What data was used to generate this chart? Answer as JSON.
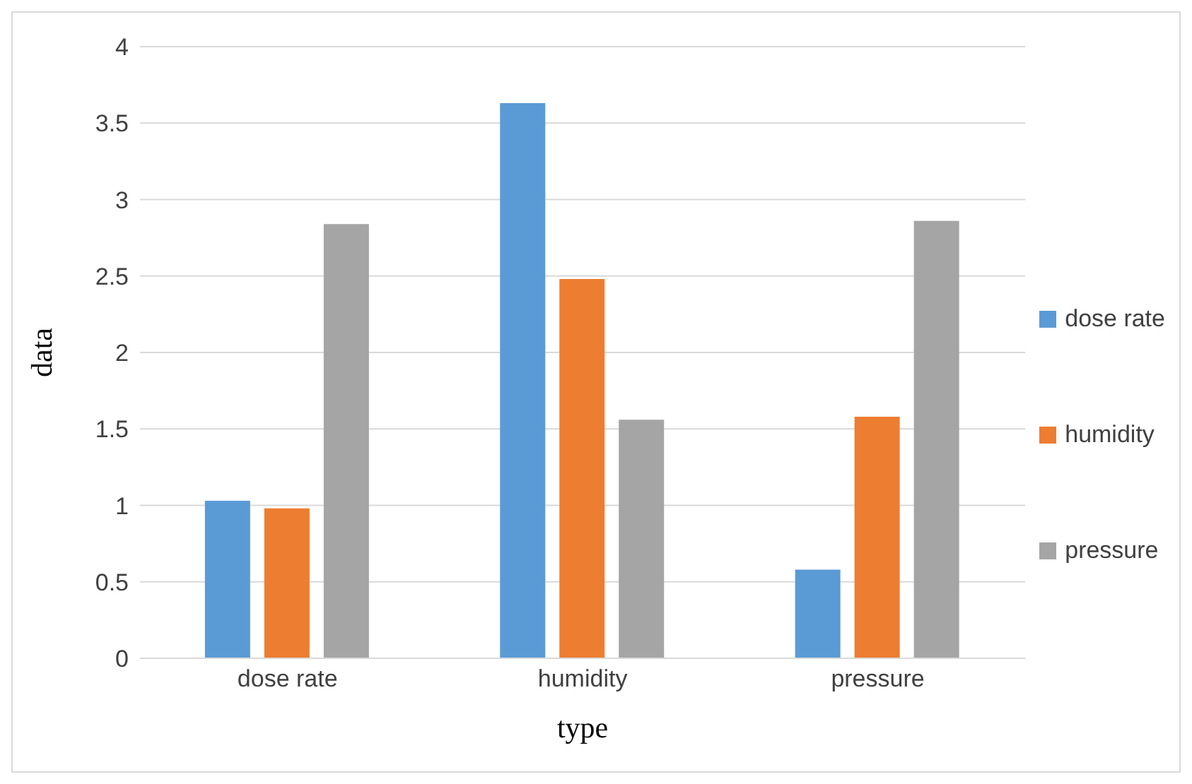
{
  "chart_data": {
    "type": "bar",
    "xlabel": "type",
    "ylabel": "data",
    "categories": [
      "dose rate",
      "humidity",
      "pressure"
    ],
    "series": [
      {
        "name": "dose rate",
        "color": "#5b9bd5",
        "values": [
          1.03,
          3.63,
          0.58
        ]
      },
      {
        "name": "humidity",
        "color": "#ed7d31",
        "values": [
          0.98,
          2.48,
          1.58
        ]
      },
      {
        "name": "pressure",
        "color": "#a5a5a5",
        "values": [
          2.84,
          1.56,
          2.86
        ]
      }
    ],
    "ylim": [
      0,
      4
    ],
    "yticks": [
      0,
      0.5,
      1,
      1.5,
      2,
      2.5,
      3,
      3.5,
      4
    ],
    "grid": "y",
    "legend": "right"
  }
}
